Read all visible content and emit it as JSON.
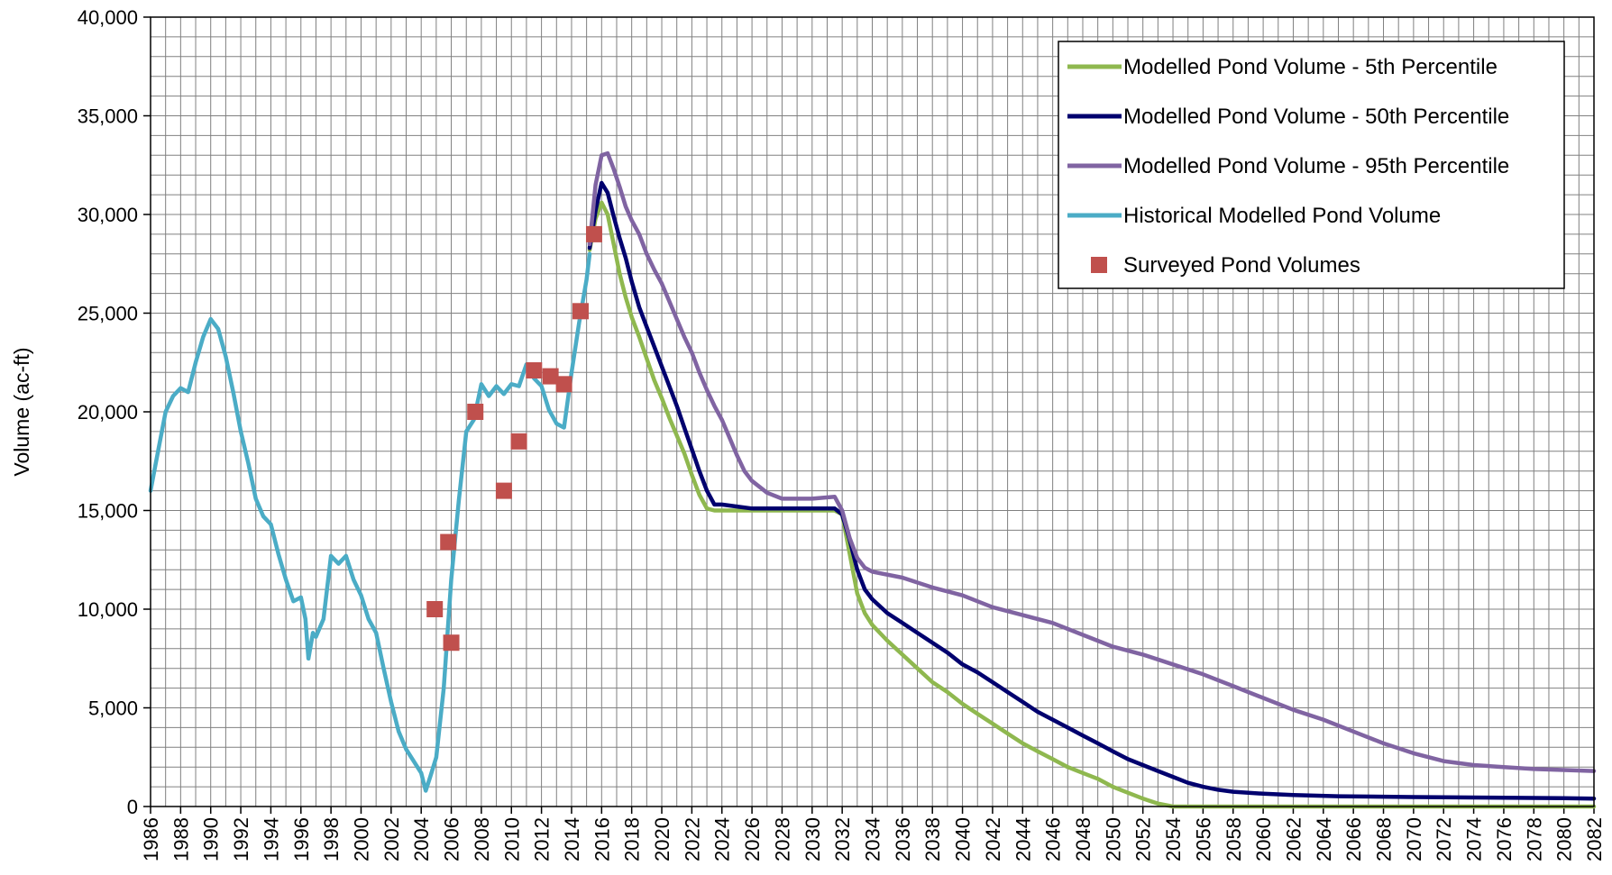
{
  "chart_data": {
    "type": "line",
    "title": "",
    "xlabel": "",
    "ylabel": "Volume (ac-ft)",
    "xlim": [
      1986,
      2082
    ],
    "ylim": [
      0,
      40000
    ],
    "x_ticks": [
      "1986",
      "1988",
      "1990",
      "1992",
      "1994",
      "1996",
      "1998",
      "2000",
      "2002",
      "2004",
      "2006",
      "2008",
      "2010",
      "2012",
      "2014",
      "2016",
      "2018",
      "2020",
      "2022",
      "2024",
      "2026",
      "2028",
      "2030",
      "2032",
      "2034",
      "2036",
      "2038",
      "2040",
      "2042",
      "2044",
      "2046",
      "2048",
      "2050",
      "2052",
      "2054",
      "2056",
      "2058",
      "2060",
      "2062",
      "2064",
      "2066",
      "2068",
      "2070",
      "2072",
      "2074",
      "2076",
      "2078",
      "2080",
      "2082"
    ],
    "y_ticks": [
      "0",
      "5,000",
      "10,000",
      "15,000",
      "20,000",
      "25,000",
      "30,000",
      "35,000",
      "40,000"
    ],
    "grid": true,
    "legend_position": "top-right",
    "series": [
      {
        "name": "Modelled Pond Volume - 5th Percentile",
        "color": "#8fb84f",
        "style": "line",
        "points": [
          [
            2015.2,
            28200
          ],
          [
            2015.6,
            29800
          ],
          [
            2016.0,
            30600
          ],
          [
            2016.4,
            30000
          ],
          [
            2016.8,
            28500
          ],
          [
            2017.2,
            27000
          ],
          [
            2017.6,
            25800
          ],
          [
            2018.0,
            24800
          ],
          [
            2018.5,
            23800
          ],
          [
            2019.0,
            22700
          ],
          [
            2019.5,
            21600
          ],
          [
            2020.0,
            20700
          ],
          [
            2020.5,
            19700
          ],
          [
            2021.0,
            18800
          ],
          [
            2021.5,
            17900
          ],
          [
            2022.0,
            16800
          ],
          [
            2022.5,
            15800
          ],
          [
            2023.0,
            15100
          ],
          [
            2023.5,
            15000
          ],
          [
            2024.0,
            15000
          ],
          [
            2026.0,
            15000
          ],
          [
            2028.0,
            15000
          ],
          [
            2030.0,
            15000
          ],
          [
            2031.5,
            15000
          ],
          [
            2032.0,
            14800
          ],
          [
            2032.5,
            12800
          ],
          [
            2033.0,
            10800
          ],
          [
            2033.5,
            9800
          ],
          [
            2034.0,
            9200
          ],
          [
            2035.0,
            8400
          ],
          [
            2036.0,
            7700
          ],
          [
            2037.0,
            7000
          ],
          [
            2038.0,
            6300
          ],
          [
            2039.0,
            5800
          ],
          [
            2040.0,
            5200
          ],
          [
            2041.0,
            4700
          ],
          [
            2042.0,
            4200
          ],
          [
            2043.0,
            3700
          ],
          [
            2044.0,
            3200
          ],
          [
            2045.0,
            2800
          ],
          [
            2046.0,
            2400
          ],
          [
            2047.0,
            2000
          ],
          [
            2048.0,
            1700
          ],
          [
            2049.0,
            1400
          ],
          [
            2050.0,
            1000
          ],
          [
            2051.0,
            700
          ],
          [
            2052.0,
            400
          ],
          [
            2053.0,
            150
          ],
          [
            2054.0,
            0
          ],
          [
            2056.0,
            0
          ],
          [
            2060.0,
            0
          ],
          [
            2070.0,
            0
          ],
          [
            2082.0,
            0
          ]
        ]
      },
      {
        "name": "Modelled Pond Volume - 50th Percentile",
        "color": "#00006e",
        "style": "line",
        "points": [
          [
            2015.2,
            28300
          ],
          [
            2015.6,
            30200
          ],
          [
            2016.0,
            31600
          ],
          [
            2016.4,
            31100
          ],
          [
            2016.8,
            29900
          ],
          [
            2017.2,
            28800
          ],
          [
            2017.6,
            27800
          ],
          [
            2018.0,
            26600
          ],
          [
            2018.5,
            25300
          ],
          [
            2019.0,
            24300
          ],
          [
            2019.5,
            23300
          ],
          [
            2020.0,
            22300
          ],
          [
            2020.5,
            21300
          ],
          [
            2021.0,
            20300
          ],
          [
            2021.5,
            19200
          ],
          [
            2022.0,
            18100
          ],
          [
            2022.5,
            17000
          ],
          [
            2023.0,
            16000
          ],
          [
            2023.5,
            15300
          ],
          [
            2024.0,
            15300
          ],
          [
            2025.0,
            15200
          ],
          [
            2026.0,
            15100
          ],
          [
            2028.0,
            15100
          ],
          [
            2030.0,
            15100
          ],
          [
            2031.5,
            15100
          ],
          [
            2032.0,
            14800
          ],
          [
            2032.5,
            13500
          ],
          [
            2033.0,
            12000
          ],
          [
            2033.5,
            11000
          ],
          [
            2034.0,
            10500
          ],
          [
            2035.0,
            9800
          ],
          [
            2036.0,
            9300
          ],
          [
            2037.0,
            8800
          ],
          [
            2038.0,
            8300
          ],
          [
            2039.0,
            7800
          ],
          [
            2040.0,
            7200
          ],
          [
            2041.0,
            6800
          ],
          [
            2042.0,
            6300
          ],
          [
            2043.0,
            5800
          ],
          [
            2044.0,
            5300
          ],
          [
            2045.0,
            4800
          ],
          [
            2046.0,
            4400
          ],
          [
            2047.0,
            4000
          ],
          [
            2048.0,
            3600
          ],
          [
            2049.0,
            3200
          ],
          [
            2050.0,
            2800
          ],
          [
            2051.0,
            2400
          ],
          [
            2052.0,
            2100
          ],
          [
            2053.0,
            1800
          ],
          [
            2054.0,
            1500
          ],
          [
            2055.0,
            1200
          ],
          [
            2056.0,
            1000
          ],
          [
            2057.0,
            850
          ],
          [
            2058.0,
            750
          ],
          [
            2060.0,
            650
          ],
          [
            2062.0,
            580
          ],
          [
            2065.0,
            520
          ],
          [
            2070.0,
            480
          ],
          [
            2075.0,
            450
          ],
          [
            2080.0,
            420
          ],
          [
            2082.0,
            400
          ]
        ]
      },
      {
        "name": "Modelled Pond Volume - 95th Percentile",
        "color": "#8064a2",
        "style": "line",
        "points": [
          [
            2015.2,
            28500
          ],
          [
            2015.6,
            31500
          ],
          [
            2016.0,
            33000
          ],
          [
            2016.4,
            33100
          ],
          [
            2016.8,
            32300
          ],
          [
            2017.2,
            31400
          ],
          [
            2017.6,
            30400
          ],
          [
            2018.0,
            29700
          ],
          [
            2018.5,
            29000
          ],
          [
            2019.0,
            28000
          ],
          [
            2019.5,
            27200
          ],
          [
            2020.0,
            26500
          ],
          [
            2020.5,
            25600
          ],
          [
            2021.0,
            24700
          ],
          [
            2021.5,
            23800
          ],
          [
            2022.0,
            23000
          ],
          [
            2022.5,
            22000
          ],
          [
            2023.0,
            21100
          ],
          [
            2023.5,
            20300
          ],
          [
            2024.0,
            19600
          ],
          [
            2024.5,
            18700
          ],
          [
            2025.0,
            17800
          ],
          [
            2025.5,
            17000
          ],
          [
            2026.0,
            16500
          ],
          [
            2027.0,
            15900
          ],
          [
            2028.0,
            15600
          ],
          [
            2030.0,
            15600
          ],
          [
            2031.5,
            15700
          ],
          [
            2032.0,
            15000
          ],
          [
            2032.5,
            13600
          ],
          [
            2033.0,
            12600
          ],
          [
            2033.5,
            12100
          ],
          [
            2034.0,
            11900
          ],
          [
            2036.0,
            11600
          ],
          [
            2038.0,
            11100
          ],
          [
            2040.0,
            10700
          ],
          [
            2042.0,
            10100
          ],
          [
            2044.0,
            9700
          ],
          [
            2046.0,
            9300
          ],
          [
            2048.0,
            8700
          ],
          [
            2050.0,
            8100
          ],
          [
            2052.0,
            7700
          ],
          [
            2054.0,
            7200
          ],
          [
            2056.0,
            6700
          ],
          [
            2058.0,
            6100
          ],
          [
            2060.0,
            5500
          ],
          [
            2062.0,
            4900
          ],
          [
            2064.0,
            4400
          ],
          [
            2066.0,
            3800
          ],
          [
            2068.0,
            3200
          ],
          [
            2070.0,
            2700
          ],
          [
            2072.0,
            2300
          ],
          [
            2074.0,
            2100
          ],
          [
            2076.0,
            2000
          ],
          [
            2078.0,
            1900
          ],
          [
            2080.0,
            1850
          ],
          [
            2082.0,
            1800
          ]
        ]
      },
      {
        "name": "Historical Modelled Pond Volume",
        "color": "#4bacc6",
        "style": "line",
        "points": [
          [
            1986.0,
            16000
          ],
          [
            1986.5,
            18000
          ],
          [
            1987.0,
            20000
          ],
          [
            1987.5,
            20800
          ],
          [
            1988.0,
            21200
          ],
          [
            1988.5,
            21000
          ],
          [
            1989.0,
            22500
          ],
          [
            1989.5,
            23800
          ],
          [
            1990.0,
            24700
          ],
          [
            1990.5,
            24200
          ],
          [
            1991.0,
            22800
          ],
          [
            1991.5,
            21000
          ],
          [
            1992.0,
            19000
          ],
          [
            1992.5,
            17400
          ],
          [
            1993.0,
            15600
          ],
          [
            1993.5,
            14700
          ],
          [
            1994.0,
            14300
          ],
          [
            1994.5,
            12800
          ],
          [
            1995.0,
            11500
          ],
          [
            1995.5,
            10400
          ],
          [
            1996.0,
            10600
          ],
          [
            1996.3,
            9500
          ],
          [
            1996.5,
            7500
          ],
          [
            1996.8,
            8800
          ],
          [
            1997.0,
            8600
          ],
          [
            1997.5,
            9500
          ],
          [
            1998.0,
            12700
          ],
          [
            1998.5,
            12300
          ],
          [
            1999.0,
            12700
          ],
          [
            1999.5,
            11500
          ],
          [
            2000.0,
            10700
          ],
          [
            2000.5,
            9500
          ],
          [
            2001.0,
            8800
          ],
          [
            2001.5,
            7000
          ],
          [
            2002.0,
            5300
          ],
          [
            2002.5,
            3800
          ],
          [
            2003.0,
            2900
          ],
          [
            2003.5,
            2300
          ],
          [
            2004.0,
            1700
          ],
          [
            2004.3,
            800
          ],
          [
            2004.6,
            1500
          ],
          [
            2005.0,
            2500
          ],
          [
            2005.5,
            6000
          ],
          [
            2006.0,
            11500
          ],
          [
            2006.5,
            15500
          ],
          [
            2007.0,
            19000
          ],
          [
            2007.5,
            19600
          ],
          [
            2008.0,
            21400
          ],
          [
            2008.5,
            20800
          ],
          [
            2009.0,
            21300
          ],
          [
            2009.5,
            20900
          ],
          [
            2010.0,
            21400
          ],
          [
            2010.5,
            21300
          ],
          [
            2011.0,
            22400
          ],
          [
            2011.5,
            21700
          ],
          [
            2012.0,
            21300
          ],
          [
            2012.5,
            20100
          ],
          [
            2013.0,
            19400
          ],
          [
            2013.5,
            19200
          ],
          [
            2014.0,
            22000
          ],
          [
            2014.5,
            24500
          ],
          [
            2015.0,
            26700
          ],
          [
            2015.2,
            28000
          ]
        ]
      },
      {
        "name": "Surveyed Pond Volumes",
        "color": "#c0504d",
        "style": "markers",
        "points": [
          [
            2004.9,
            10000
          ],
          [
            2005.8,
            13400
          ],
          [
            2006.0,
            8300
          ],
          [
            2007.6,
            20000
          ],
          [
            2009.5,
            16000
          ],
          [
            2010.5,
            18500
          ],
          [
            2011.5,
            22100
          ],
          [
            2012.6,
            21800
          ],
          [
            2013.5,
            21400
          ],
          [
            2014.6,
            25100
          ],
          [
            2015.5,
            29000
          ]
        ]
      }
    ]
  }
}
